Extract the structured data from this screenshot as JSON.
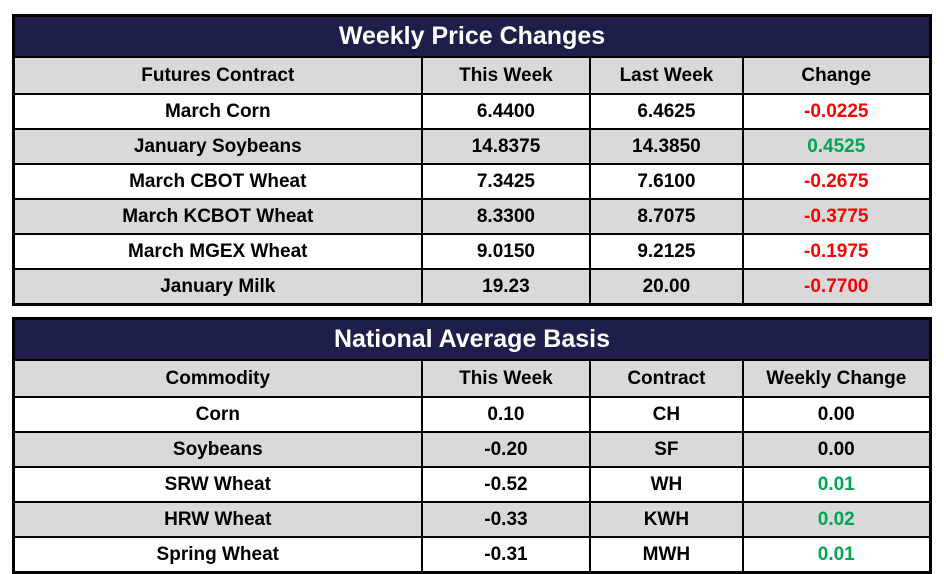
{
  "colors": {
    "title_bg": "#1e1e4b",
    "title_text": "#ffffff",
    "header_bg": "#d9d9d9",
    "stripe_bg": "#d9d9d9",
    "row_bg": "#ffffff",
    "border": "#000000",
    "negative": "#ff0000",
    "positive": "#00a651",
    "neutral": "#000000"
  },
  "tables": [
    {
      "title": "Weekly Price Changes",
      "headers": [
        "Futures Contract",
        "This Week",
        "Last Week",
        "Change"
      ],
      "rows": [
        {
          "cells": [
            "March Corn",
            "6.4400",
            "6.4625",
            "-0.0225"
          ],
          "change_color": "negative"
        },
        {
          "cells": [
            "January Soybeans",
            "14.8375",
            "14.3850",
            "0.4525"
          ],
          "change_color": "positive"
        },
        {
          "cells": [
            "March CBOT Wheat",
            "7.3425",
            "7.6100",
            "-0.2675"
          ],
          "change_color": "negative"
        },
        {
          "cells": [
            "March KCBOT Wheat",
            "8.3300",
            "8.7075",
            "-0.3775"
          ],
          "change_color": "negative"
        },
        {
          "cells": [
            "March MGEX Wheat",
            "9.0150",
            "9.2125",
            "-0.1975"
          ],
          "change_color": "negative"
        },
        {
          "cells": [
            "January Milk",
            "19.23",
            "20.00",
            "-0.7700"
          ],
          "change_color": "negative"
        }
      ]
    },
    {
      "title": "National Average Basis",
      "headers": [
        "Commodity",
        "This Week",
        "Contract",
        "Weekly Change"
      ],
      "rows": [
        {
          "cells": [
            "Corn",
            "0.10",
            "CH",
            "0.00"
          ],
          "change_color": "neutral"
        },
        {
          "cells": [
            "Soybeans",
            "-0.20",
            "SF",
            "0.00"
          ],
          "change_color": "neutral"
        },
        {
          "cells": [
            "SRW Wheat",
            "-0.52",
            "WH",
            "0.01"
          ],
          "change_color": "positive"
        },
        {
          "cells": [
            "HRW Wheat",
            "-0.33",
            "KWH",
            "0.02"
          ],
          "change_color": "positive"
        },
        {
          "cells": [
            "Spring Wheat",
            "-0.31",
            "MWH",
            "0.01"
          ],
          "change_color": "positive"
        }
      ]
    }
  ]
}
